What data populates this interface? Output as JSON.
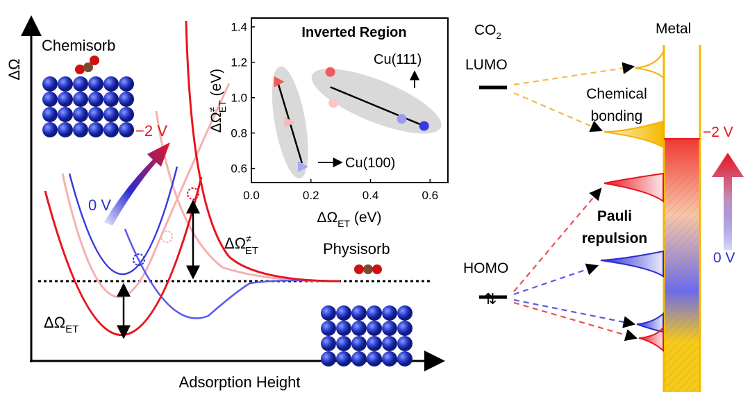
{
  "left_panel": {
    "y_axis_label": "ΔΩ",
    "x_axis_label": "Adsorption Height",
    "chemisorb_label": "Chemisorb",
    "physisorb_label": "Physisorb",
    "voltage_high": "−2 V",
    "voltage_low": "0 V",
    "barrier_label": {
      "main": "ΔΩ",
      "sup": "≠",
      "sub": "ET"
    },
    "et_label": {
      "main": "ΔΩ",
      "sub": "ET"
    }
  },
  "chart_data": {
    "type": "scatter",
    "title": "Inverted Region",
    "xlabel": {
      "main": "ΔΩ",
      "sub": "ET",
      "unit": " (eV)"
    },
    "ylabel": {
      "main": "ΔΩ",
      "sup": "≠",
      "sub": "ET",
      "unit": " (eV)"
    },
    "xlim": [
      0.0,
      0.66
    ],
    "ylim": [
      0.52,
      1.45
    ],
    "x_ticks": [
      "0.0",
      "0.2",
      "0.4",
      "0.6"
    ],
    "y_ticks": [
      "0.6",
      "0.8",
      "1.0",
      "1.2",
      "1.4"
    ],
    "grid": false,
    "series": [
      {
        "name": "Cu(100)",
        "marker": "triangle",
        "points": [
          {
            "x": 0.09,
            "y": 1.09,
            "color": "#f05a5a"
          },
          {
            "x": 0.125,
            "y": 0.86,
            "color": "#f9b8bc"
          },
          {
            "x": 0.17,
            "y": 0.61,
            "color": "#a8a8f5"
          }
        ],
        "fit": [
          [
            0.09,
            1.08
          ],
          [
            0.17,
            0.63
          ]
        ]
      },
      {
        "name": "Cu(111)",
        "marker": "circle",
        "points": [
          {
            "x": 0.265,
            "y": 1.145,
            "color": "#f05a5a"
          },
          {
            "x": 0.275,
            "y": 0.97,
            "color": "#fbc4c6"
          },
          {
            "x": 0.505,
            "y": 0.88,
            "color": "#9a9af2"
          },
          {
            "x": 0.58,
            "y": 0.84,
            "color": "#3a3ae0"
          }
        ],
        "fit": [
          [
            0.265,
            1.06
          ],
          [
            0.58,
            0.84
          ]
        ]
      }
    ],
    "annotations": [
      "Cu(111)",
      "Cu(100)"
    ]
  },
  "right_panel": {
    "molecule_label": {
      "main": "CO",
      "sub": "2"
    },
    "metal_label": "Metal",
    "lumo_label": "LUMO",
    "homo_label": "HOMO",
    "chemical_bonding_label": [
      "Chemical",
      "bonding"
    ],
    "pauli_label": [
      "Pauli",
      "repulsion"
    ],
    "voltage_high": "−2 V",
    "voltage_low": "0 V"
  },
  "colors": {
    "red": "#e8141e",
    "blue": "#2b2bd6",
    "gold": "#f5b800",
    "gray": "#d9d9d9"
  }
}
